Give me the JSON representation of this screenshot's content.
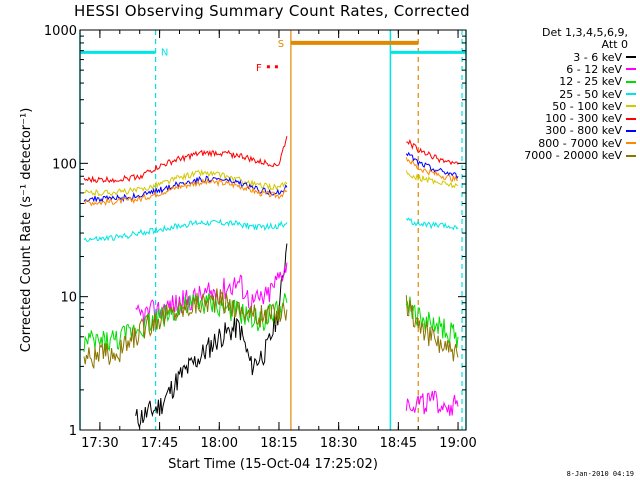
{
  "title": "HESSI Observing Summary Count Rates, Corrected",
  "footer_timestamp": "8-Jan-2010 04:19",
  "legend": {
    "header_line1": "Det 1,3,4,5,6,9,",
    "header_line2": "Att 0",
    "entries": [
      {
        "label": "3 - 6 keV",
        "color": "#000000"
      },
      {
        "label": "6 - 12 keV",
        "color": "#ff00ff"
      },
      {
        "label": "12 - 25 keV",
        "color": "#00dd00"
      },
      {
        "label": "25 - 50 keV",
        "color": "#00e5e5"
      },
      {
        "label": "50 - 100 keV",
        "color": "#d4c800"
      },
      {
        "label": "100 - 300 keV",
        "color": "#ff0000"
      },
      {
        "label": "300 - 800 keV",
        "color": "#0000ff"
      },
      {
        "label": "800 - 7000 keV",
        "color": "#ff8800"
      },
      {
        "label": "7000 - 20000 keV",
        "color": "#8b7500"
      }
    ]
  },
  "flags": {
    "N_label": "N",
    "S_label": "S",
    "F_label": "F"
  },
  "chart_data": {
    "type": "line",
    "title": "HESSI Observing Summary Count Rates, Corrected",
    "xlabel": "Start Time (15-Oct-04 17:25:02)",
    "ylabel": "Corrected Count Rate (s⁻¹ detector⁻¹)",
    "x_ticks": [
      "17:30",
      "17:45",
      "18:00",
      "18:15",
      "18:30",
      "18:45",
      "19:00"
    ],
    "y_ticks": [
      "1",
      "10",
      "100",
      "1000"
    ],
    "ylim": [
      1,
      1000
    ],
    "y_scale": "log",
    "xlim": [
      "17:25",
      "19:02"
    ],
    "grid": false,
    "legend_position": "right",
    "annotations": {
      "night_intervals": [
        [
          "17:25",
          "17:44"
        ],
        [
          "18:43",
          "19:02"
        ]
      ],
      "saa_interval": [
        "18:18",
        "18:50"
      ],
      "flare_marker": "F",
      "vertical_dashed_cyan": [
        "17:44",
        "19:01"
      ],
      "vertical_solid_cyan": [
        "17:25",
        "18:43",
        "19:02"
      ],
      "vertical_solid_orange": "18:18",
      "vertical_dashed_orange": "18:50"
    },
    "series": [
      {
        "name": "3 - 6 keV",
        "color": "#000000",
        "segment1": {
          "x": [
            "17:39",
            "17:45",
            "17:50",
            "17:55",
            "18:00",
            "18:05",
            "18:08",
            "18:12",
            "18:15",
            "18:17"
          ],
          "y": [
            1.2,
            1.5,
            2.5,
            3.5,
            5,
            6,
            3,
            4,
            8,
            25
          ]
        },
        "segment2": {
          "x": [],
          "y": []
        }
      },
      {
        "name": "6 - 12 keV",
        "color": "#ff00ff",
        "segment1": {
          "x": [
            "17:39",
            "17:45",
            "17:50",
            "17:55",
            "18:00",
            "18:05",
            "18:08",
            "18:12",
            "18:15",
            "18:17"
          ],
          "y": [
            7,
            8,
            9,
            10,
            11,
            13,
            9,
            10,
            14,
            18
          ]
        },
        "segment2": {
          "x": [
            "18:47",
            "18:50",
            "18:55",
            "19:00"
          ],
          "y": [
            1.6,
            1.6,
            1.6,
            1.5
          ]
        }
      },
      {
        "name": "12 - 25 keV",
        "color": "#00dd00",
        "segment1": {
          "x": [
            "17:26",
            "17:30",
            "17:35",
            "17:40",
            "17:45",
            "17:50",
            "17:55",
            "18:00",
            "18:05",
            "18:10",
            "18:15",
            "18:17"
          ],
          "y": [
            4.5,
            4.6,
            4.8,
            6,
            7,
            8,
            9,
            8.5,
            7.5,
            6.5,
            8,
            9
          ]
        },
        "segment2": {
          "x": [
            "18:47",
            "18:50",
            "18:55",
            "19:00"
          ],
          "y": [
            9,
            7,
            6,
            5
          ]
        }
      },
      {
        "name": "25 - 50 keV",
        "color": "#00e5e5",
        "segment1": {
          "x": [
            "17:26",
            "17:30",
            "17:35",
            "17:40",
            "17:45",
            "17:50",
            "17:55",
            "18:00",
            "18:05",
            "18:10",
            "18:15",
            "18:17"
          ],
          "y": [
            27,
            27,
            28,
            30,
            32,
            34,
            36,
            36,
            35,
            33,
            34,
            36
          ]
        },
        "segment2": {
          "x": [
            "18:47",
            "18:50",
            "18:55",
            "19:00"
          ],
          "y": [
            38,
            35,
            34,
            33
          ]
        }
      },
      {
        "name": "50 - 100 keV",
        "color": "#d4c800",
        "segment1": {
          "x": [
            "17:26",
            "17:30",
            "17:35",
            "17:40",
            "17:45",
            "17:50",
            "17:55",
            "18:00",
            "18:05",
            "18:10",
            "18:15",
            "18:17"
          ],
          "y": [
            60,
            60,
            61,
            63,
            70,
            78,
            85,
            82,
            75,
            68,
            66,
            70
          ]
        },
        "segment2": {
          "x": [
            "18:47",
            "18:50",
            "18:55",
            "19:00"
          ],
          "y": [
            85,
            78,
            72,
            68
          ]
        }
      },
      {
        "name": "100 - 300 keV",
        "color": "#ff0000",
        "segment1": {
          "x": [
            "17:26",
            "17:30",
            "17:35",
            "17:40",
            "17:45",
            "17:50",
            "17:55",
            "18:00",
            "18:05",
            "18:10",
            "18:15",
            "18:17"
          ],
          "y": [
            75,
            75,
            76,
            80,
            95,
            108,
            118,
            120,
            115,
            102,
            98,
            160
          ]
        },
        "segment2": {
          "x": [
            "18:47",
            "18:50",
            "18:55",
            "19:00"
          ],
          "y": [
            150,
            125,
            108,
            98
          ]
        }
      },
      {
        "name": "300 - 800 keV",
        "color": "#0000ff",
        "segment1": {
          "x": [
            "17:26",
            "17:30",
            "17:35",
            "17:40",
            "17:45",
            "17:50",
            "17:55",
            "18:00",
            "18:05",
            "18:10",
            "18:15",
            "18:17"
          ],
          "y": [
            54,
            54,
            55,
            57,
            63,
            70,
            76,
            76,
            71,
            63,
            60,
            66
          ]
        },
        "segment2": {
          "x": [
            "18:47",
            "18:50",
            "18:55",
            "19:00"
          ],
          "y": [
            120,
            100,
            88,
            80
          ]
        }
      },
      {
        "name": "800 - 7000 keV",
        "color": "#ff8800",
        "segment1": {
          "x": [
            "17:26",
            "17:30",
            "17:35",
            "17:40",
            "17:45",
            "17:50",
            "17:55",
            "18:00",
            "18:05",
            "18:10",
            "18:15",
            "18:17"
          ],
          "y": [
            51,
            51,
            52,
            54,
            60,
            67,
            72,
            72,
            68,
            60,
            57,
            62
          ]
        },
        "segment2": {
          "x": [
            "18:47",
            "18:50",
            "18:55",
            "19:00"
          ],
          "y": [
            110,
            92,
            82,
            75
          ]
        }
      },
      {
        "name": "7000 - 20000 keV",
        "color": "#8b7500",
        "segment1": {
          "x": [
            "17:26",
            "17:30",
            "17:35",
            "17:40",
            "17:45",
            "17:50",
            "17:55",
            "18:00",
            "18:05",
            "18:10",
            "18:15",
            "18:17"
          ],
          "y": [
            3.5,
            3.6,
            3.8,
            5.5,
            7,
            8,
            9,
            9.5,
            8,
            7,
            7.5,
            8
          ]
        },
        "segment2": {
          "x": [
            "18:47",
            "18:50",
            "18:55",
            "19:00"
          ],
          "y": [
            9,
            6,
            4.5,
            3.5
          ]
        }
      }
    ]
  }
}
